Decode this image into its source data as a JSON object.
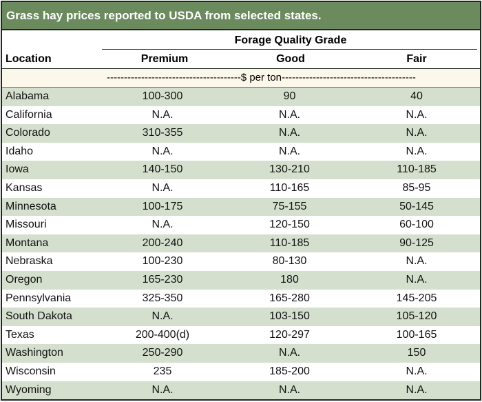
{
  "title": "Grass hay prices reported to USDA from selected states.",
  "header": {
    "group_label": "Forage Quality Grade",
    "location": "Location",
    "premium": "Premium",
    "good": "Good",
    "fair": "Fair"
  },
  "units_row": "---------------------------------------$ per ton---------------------------------------",
  "rows": [
    {
      "location": "Alabama",
      "premium": "100-300",
      "good": "90",
      "fair": "40"
    },
    {
      "location": "California",
      "premium": "N.A.",
      "good": "N.A.",
      "fair": "N.A."
    },
    {
      "location": "Colorado",
      "premium": "310-355",
      "good": "N.A.",
      "fair": "N.A."
    },
    {
      "location": "Idaho",
      "premium": "N.A.",
      "good": "N.A.",
      "fair": "N.A."
    },
    {
      "location": "Iowa",
      "premium": "140-150",
      "good": "130-210",
      "fair": "110-185"
    },
    {
      "location": "Kansas",
      "premium": "N.A.",
      "good": "110-165",
      "fair": "85-95"
    },
    {
      "location": "Minnesota",
      "premium": "100-175",
      "good": "75-155",
      "fair": "50-145"
    },
    {
      "location": "Missouri",
      "premium": "N.A.",
      "good": "120-150",
      "fair": "60-100"
    },
    {
      "location": "Montana",
      "premium": "200-240",
      "good": "110-185",
      "fair": "90-125"
    },
    {
      "location": "Nebraska",
      "premium": "100-230",
      "good": "80-130",
      "fair": "N.A."
    },
    {
      "location": "Oregon",
      "premium": "165-230",
      "good": "180",
      "fair": "N.A."
    },
    {
      "location": "Pennsylvania",
      "premium": "325-350",
      "good": "165-280",
      "fair": "145-205"
    },
    {
      "location": "South Dakota",
      "premium": "N.A.",
      "good": "103-150",
      "fair": "105-120"
    },
    {
      "location": "Texas",
      "premium": "200-400(d)",
      "good": "120-297",
      "fair": "100-165"
    },
    {
      "location": "Washington",
      "premium": "250-290",
      "good": "N.A.",
      "fair": "150"
    },
    {
      "location": "Wisconsin",
      "premium": "235",
      "good": "185-200",
      "fair": "N.A."
    },
    {
      "location": "Wyoming",
      "premium": "N.A.",
      "good": "N.A.",
      "fair": "N.A."
    }
  ]
}
